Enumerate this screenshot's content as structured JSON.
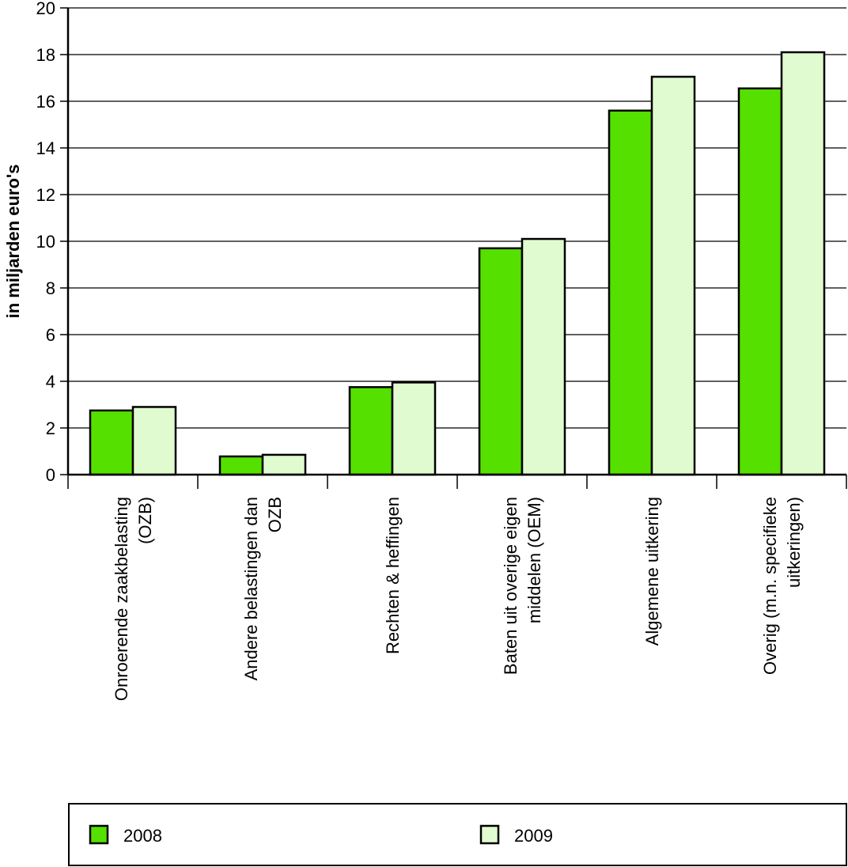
{
  "chart_data": {
    "type": "bar",
    "ylabel": "in miljarden euro's",
    "ylim": [
      0,
      20
    ],
    "yticks": [
      0,
      2,
      4,
      6,
      8,
      10,
      12,
      14,
      16,
      18,
      20
    ],
    "grid": true,
    "legend_position": "bottom",
    "categories": [
      [
        "Onroerende zaakbelasting",
        "(OZB)"
      ],
      [
        "Andere belastingen dan",
        "OZB"
      ],
      [
        "Rechten & heffingen"
      ],
      [
        "Baten uit overige eigen",
        "middelen (OEM)"
      ],
      [
        "Algemene uitkering"
      ],
      [
        "Overig (m.n. specifieke",
        "uitkeringen)"
      ]
    ],
    "series": [
      {
        "name": "2008",
        "color": "#55e000",
        "values": [
          2.75,
          0.78,
          3.75,
          9.7,
          15.6,
          16.55
        ]
      },
      {
        "name": "2009",
        "color": "#e0fbcf",
        "values": [
          2.9,
          0.85,
          3.95,
          10.1,
          17.05,
          18.1
        ]
      }
    ]
  }
}
